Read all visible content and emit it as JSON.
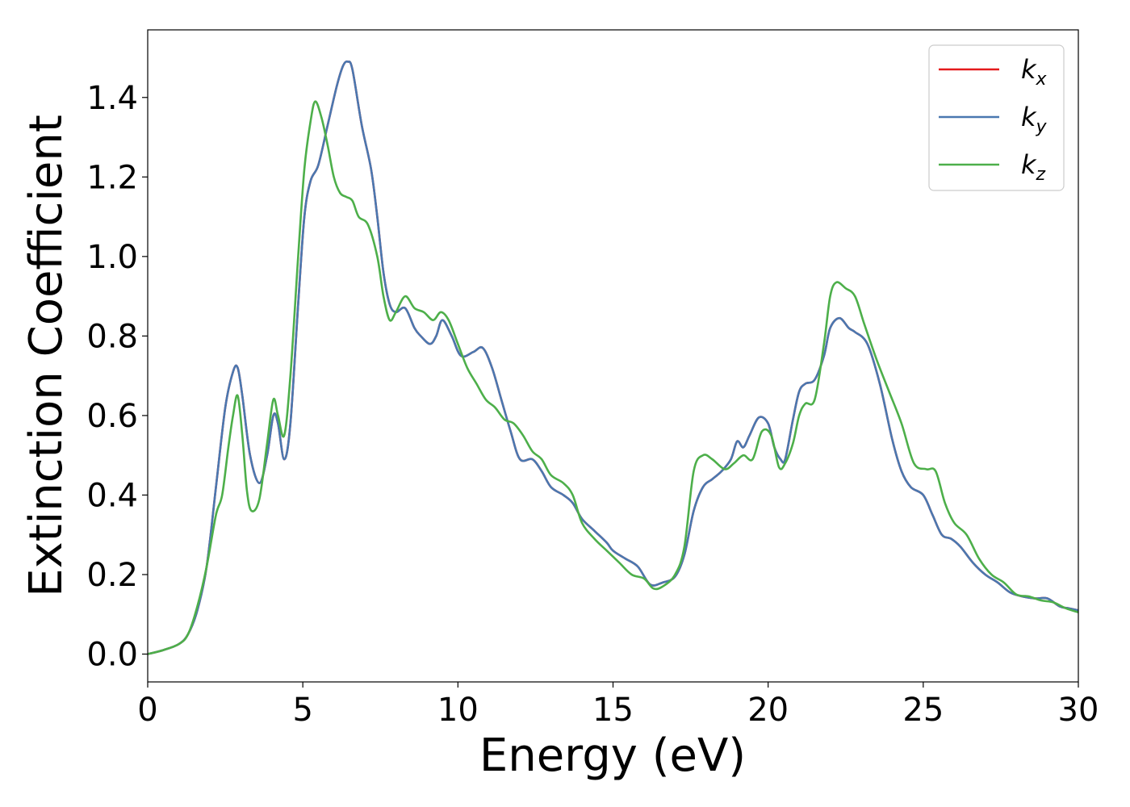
{
  "chart_data": {
    "type": "line",
    "xlabel": "Energy (eV)",
    "ylabel": "Extinction Coefficient",
    "xlim": [
      0,
      30
    ],
    "ylim": [
      -0.07,
      1.57
    ],
    "xticks": [
      "0",
      "5",
      "10",
      "15",
      "20",
      "25",
      "30"
    ],
    "yticks": [
      "0.0",
      "0.2",
      "0.4",
      "0.6",
      "0.8",
      "1.0",
      "1.2",
      "1.4"
    ],
    "grid": false,
    "legend_position": "top-right",
    "series": [
      {
        "name": "k_x",
        "label_main": "k",
        "label_sub": "x",
        "color": "#e41a1c",
        "x": [
          0,
          0.5,
          1.0,
          1.3,
          1.6,
          1.9,
          2.2,
          2.5,
          2.75,
          2.9,
          3.05,
          3.3,
          3.6,
          3.85,
          4.05,
          4.2,
          4.4,
          4.6,
          4.85,
          5.05,
          5.25,
          5.5,
          5.8,
          6.1,
          6.3,
          6.45,
          6.6,
          6.9,
          7.2,
          7.4,
          7.6,
          7.8,
          8.0,
          8.3,
          8.6,
          8.8,
          9.1,
          9.3,
          9.5,
          9.8,
          10.1,
          10.5,
          10.8,
          11.1,
          11.4,
          11.7,
          12.0,
          12.4,
          12.7,
          13.0,
          13.4,
          13.7,
          14.0,
          14.4,
          14.8,
          15.0,
          15.4,
          15.8,
          16.2,
          16.6,
          17.0,
          17.3,
          17.6,
          17.9,
          18.2,
          18.5,
          18.8,
          19.0,
          19.2,
          19.4,
          19.7,
          20.0,
          20.2,
          20.4,
          20.55,
          20.8,
          21.0,
          21.2,
          21.5,
          21.8,
          22.0,
          22.3,
          22.6,
          22.8,
          23.2,
          23.6,
          24.0,
          24.3,
          24.6,
          25.0,
          25.3,
          25.6,
          25.9,
          26.2,
          26.6,
          27.0,
          27.4,
          27.8,
          28.2,
          28.6,
          29.0,
          29.4,
          29.7,
          30.0
        ],
        "y": [
          0.0,
          0.01,
          0.025,
          0.05,
          0.11,
          0.22,
          0.42,
          0.62,
          0.71,
          0.72,
          0.65,
          0.5,
          0.43,
          0.5,
          0.6,
          0.58,
          0.49,
          0.58,
          0.88,
          1.1,
          1.19,
          1.23,
          1.33,
          1.43,
          1.48,
          1.49,
          1.47,
          1.33,
          1.22,
          1.1,
          0.96,
          0.88,
          0.86,
          0.87,
          0.82,
          0.8,
          0.78,
          0.8,
          0.84,
          0.8,
          0.75,
          0.76,
          0.77,
          0.72,
          0.64,
          0.56,
          0.49,
          0.49,
          0.46,
          0.42,
          0.4,
          0.38,
          0.34,
          0.31,
          0.28,
          0.26,
          0.24,
          0.22,
          0.175,
          0.18,
          0.195,
          0.25,
          0.36,
          0.42,
          0.44,
          0.46,
          0.49,
          0.535,
          0.52,
          0.55,
          0.595,
          0.58,
          0.52,
          0.49,
          0.49,
          0.59,
          0.66,
          0.68,
          0.69,
          0.75,
          0.82,
          0.845,
          0.82,
          0.81,
          0.78,
          0.68,
          0.54,
          0.46,
          0.42,
          0.4,
          0.35,
          0.3,
          0.29,
          0.27,
          0.23,
          0.2,
          0.18,
          0.155,
          0.145,
          0.14,
          0.14,
          0.12,
          0.115,
          0.11
        ]
      },
      {
        "name": "k_y",
        "label_main": "k",
        "label_sub": "y",
        "color": "#4a78b0",
        "x": [
          0,
          0.5,
          1.0,
          1.3,
          1.6,
          1.9,
          2.2,
          2.5,
          2.75,
          2.9,
          3.05,
          3.3,
          3.6,
          3.85,
          4.05,
          4.2,
          4.4,
          4.6,
          4.85,
          5.05,
          5.25,
          5.5,
          5.8,
          6.1,
          6.3,
          6.45,
          6.6,
          6.9,
          7.2,
          7.4,
          7.6,
          7.8,
          8.0,
          8.3,
          8.6,
          8.8,
          9.1,
          9.3,
          9.5,
          9.8,
          10.1,
          10.5,
          10.8,
          11.1,
          11.4,
          11.7,
          12.0,
          12.4,
          12.7,
          13.0,
          13.4,
          13.7,
          14.0,
          14.4,
          14.8,
          15.0,
          15.4,
          15.8,
          16.2,
          16.6,
          17.0,
          17.3,
          17.6,
          17.9,
          18.2,
          18.5,
          18.8,
          19.0,
          19.2,
          19.4,
          19.7,
          20.0,
          20.2,
          20.4,
          20.55,
          20.8,
          21.0,
          21.2,
          21.5,
          21.8,
          22.0,
          22.3,
          22.6,
          22.8,
          23.2,
          23.6,
          24.0,
          24.3,
          24.6,
          25.0,
          25.3,
          25.6,
          25.9,
          26.2,
          26.6,
          27.0,
          27.4,
          27.8,
          28.2,
          28.6,
          29.0,
          29.4,
          29.7,
          30.0
        ],
        "y": [
          0.0,
          0.01,
          0.025,
          0.05,
          0.11,
          0.22,
          0.42,
          0.62,
          0.71,
          0.72,
          0.65,
          0.5,
          0.43,
          0.5,
          0.6,
          0.58,
          0.49,
          0.58,
          0.88,
          1.1,
          1.19,
          1.23,
          1.33,
          1.43,
          1.48,
          1.49,
          1.47,
          1.33,
          1.22,
          1.1,
          0.96,
          0.88,
          0.86,
          0.87,
          0.82,
          0.8,
          0.78,
          0.8,
          0.84,
          0.8,
          0.75,
          0.76,
          0.77,
          0.72,
          0.64,
          0.56,
          0.49,
          0.49,
          0.46,
          0.42,
          0.4,
          0.38,
          0.34,
          0.31,
          0.28,
          0.26,
          0.24,
          0.22,
          0.175,
          0.18,
          0.195,
          0.25,
          0.36,
          0.42,
          0.44,
          0.46,
          0.49,
          0.535,
          0.52,
          0.55,
          0.595,
          0.58,
          0.52,
          0.49,
          0.49,
          0.59,
          0.66,
          0.68,
          0.69,
          0.75,
          0.82,
          0.845,
          0.82,
          0.81,
          0.78,
          0.68,
          0.54,
          0.46,
          0.42,
          0.4,
          0.35,
          0.3,
          0.29,
          0.27,
          0.23,
          0.2,
          0.18,
          0.155,
          0.145,
          0.14,
          0.14,
          0.12,
          0.115,
          0.11
        ]
      },
      {
        "name": "k_z",
        "label_main": "k",
        "label_sub": "z",
        "color": "#4daf4a",
        "x": [
          0,
          0.5,
          1.0,
          1.3,
          1.6,
          1.9,
          2.2,
          2.4,
          2.6,
          2.75,
          2.9,
          3.05,
          3.2,
          3.35,
          3.6,
          3.85,
          4.05,
          4.2,
          4.4,
          4.6,
          4.85,
          5.05,
          5.25,
          5.4,
          5.6,
          5.8,
          6.0,
          6.2,
          6.4,
          6.6,
          6.8,
          7.1,
          7.4,
          7.6,
          7.8,
          8.0,
          8.3,
          8.6,
          8.9,
          9.2,
          9.45,
          9.7,
          10.0,
          10.3,
          10.6,
          10.9,
          11.2,
          11.5,
          11.8,
          12.1,
          12.4,
          12.7,
          13.0,
          13.4,
          13.7,
          14.0,
          14.4,
          14.8,
          15.2,
          15.6,
          16.0,
          16.3,
          16.6,
          17.0,
          17.3,
          17.6,
          17.9,
          18.2,
          18.6,
          18.9,
          19.2,
          19.5,
          19.8,
          20.1,
          20.35,
          20.55,
          20.8,
          21.0,
          21.2,
          21.5,
          21.8,
          22.0,
          22.2,
          22.5,
          22.8,
          23.1,
          23.5,
          23.9,
          24.3,
          24.7,
          25.1,
          25.4,
          25.7,
          26.0,
          26.4,
          26.8,
          27.2,
          27.6,
          28.0,
          28.4,
          28.8,
          29.2,
          29.6,
          30.0
        ],
        "y": [
          0.0,
          0.01,
          0.025,
          0.05,
          0.12,
          0.22,
          0.35,
          0.4,
          0.52,
          0.6,
          0.65,
          0.55,
          0.41,
          0.36,
          0.39,
          0.53,
          0.64,
          0.6,
          0.55,
          0.7,
          1.0,
          1.22,
          1.34,
          1.39,
          1.35,
          1.28,
          1.2,
          1.16,
          1.15,
          1.14,
          1.1,
          1.08,
          1.0,
          0.9,
          0.84,
          0.86,
          0.9,
          0.87,
          0.86,
          0.84,
          0.86,
          0.84,
          0.78,
          0.72,
          0.68,
          0.64,
          0.62,
          0.59,
          0.58,
          0.55,
          0.51,
          0.49,
          0.45,
          0.43,
          0.4,
          0.33,
          0.29,
          0.26,
          0.23,
          0.2,
          0.19,
          0.165,
          0.17,
          0.2,
          0.27,
          0.46,
          0.5,
          0.49,
          0.465,
          0.48,
          0.5,
          0.49,
          0.56,
          0.55,
          0.47,
          0.48,
          0.53,
          0.6,
          0.63,
          0.64,
          0.78,
          0.9,
          0.935,
          0.92,
          0.9,
          0.83,
          0.74,
          0.66,
          0.58,
          0.48,
          0.465,
          0.46,
          0.38,
          0.33,
          0.3,
          0.24,
          0.2,
          0.18,
          0.15,
          0.145,
          0.135,
          0.13,
          0.115,
          0.105
        ]
      }
    ]
  }
}
